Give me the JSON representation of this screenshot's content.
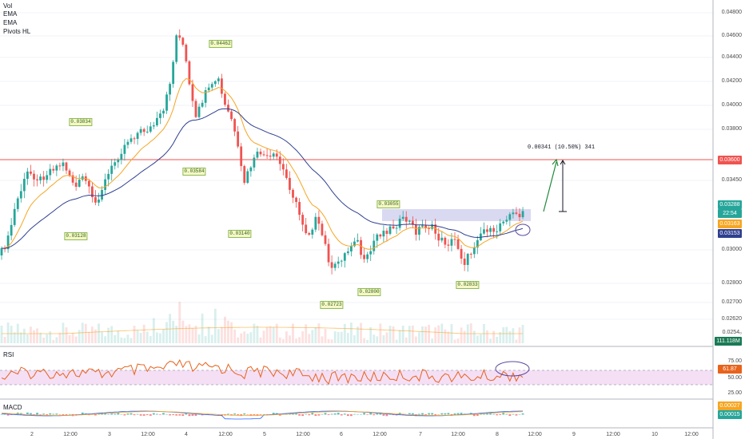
{
  "indicators": [
    "Vol",
    "EMA",
    "EMA",
    "Pivots HL"
  ],
  "sub_labels": {
    "rsi": "RSI",
    "macd": "MACD"
  },
  "price_axis": [
    "0.04800",
    "0.04600",
    "0.04400",
    "0.04200",
    "0.04000",
    "0.03800",
    "0.03450",
    "0.03000",
    "0.02800",
    "0.02700",
    "0.02620",
    "0.0254₀"
  ],
  "time_axis": [
    "2",
    "12:00",
    "3",
    "12:00",
    "4",
    "12:00",
    "5",
    "12:00",
    "6",
    "12:00",
    "7",
    "12:00",
    "8",
    "12:00",
    "9",
    "12:00",
    "10",
    "12:00"
  ],
  "price_tags": {
    "resistance": "0.03600",
    "last": "0.03288",
    "countdown": "22:54",
    "ema_fast": "0.03163",
    "ema_slow": "0.03153",
    "volume": "111.118M",
    "rsi_value": "61.87",
    "macd_1": "0.00027",
    "macd_2": "0.00015"
  },
  "rsi_axis": [
    "75.00",
    "50.00",
    "25.00"
  ],
  "pivots": [
    "0.03834",
    "0.04462",
    "0.03584",
    "0.03128",
    "0.03140",
    "0.02723",
    "0.02800",
    "0.03055",
    "0.02833"
  ],
  "measure_text": "0.00341 (10.50%) 341",
  "colors": {
    "up": "#26a69a",
    "down": "#ef5350",
    "ema_fast": "#f6a623",
    "ema_slow": "#2f3f8f",
    "resistance": "#ef5350",
    "rsi": "#e8631c",
    "rsi_band": "#f3d7f3",
    "arrow": "#1e8a3a",
    "zone": "#b9b9e8"
  }
}
